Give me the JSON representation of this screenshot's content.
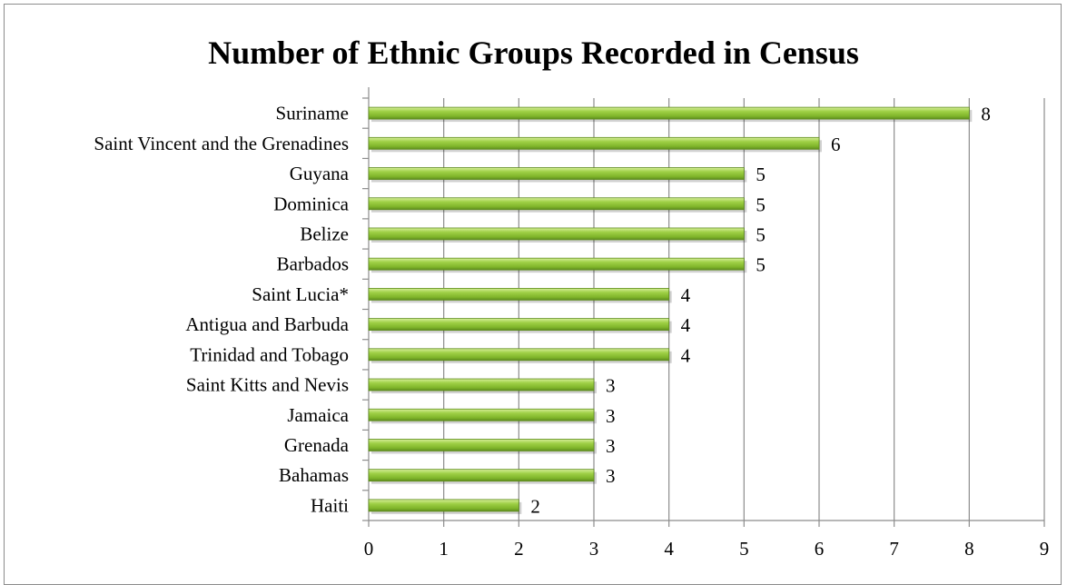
{
  "chart_data": {
    "type": "bar",
    "orientation": "horizontal",
    "title": "Number of Ethnic Groups Recorded in Census",
    "xlabel": "",
    "ylabel": "",
    "categories": [
      "Suriname",
      "Saint Vincent and the Grenadines",
      "Guyana",
      "Dominica",
      "Belize",
      "Barbados",
      "Saint Lucia*",
      "Antigua and Barbuda",
      "Trinidad and Tobago",
      "Saint Kitts and Nevis",
      "Jamaica",
      "Grenada",
      "Bahamas",
      "Haiti"
    ],
    "values": [
      8,
      6,
      5,
      5,
      5,
      5,
      4,
      4,
      4,
      3,
      3,
      3,
      3,
      2
    ],
    "xlim": [
      0,
      9
    ],
    "xticks": [
      0,
      1,
      2,
      3,
      4,
      5,
      6,
      7,
      8,
      9
    ],
    "grid": "vertical",
    "legend": "none",
    "data_labels": true,
    "bar_color": "#8cc63f",
    "bar_color_dark": "#5e8c1e",
    "grid_color": "#8c8c8c"
  }
}
